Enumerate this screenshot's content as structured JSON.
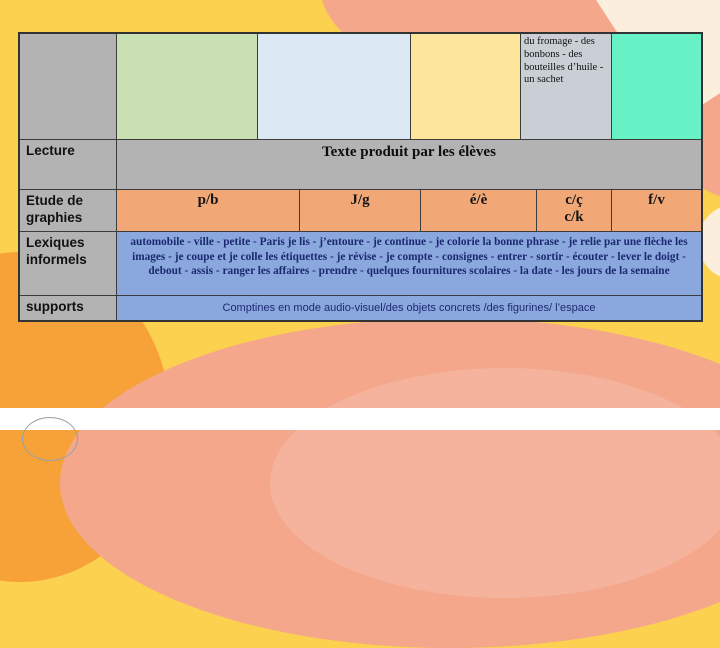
{
  "table": {
    "header_row": {
      "swatches": [
        {
          "id": "green",
          "color": "#c8e0b4",
          "text": ""
        },
        {
          "id": "blue",
          "color": "#dce9f5",
          "text": ""
        },
        {
          "id": "yellow",
          "color": "#fde69c",
          "text": ""
        },
        {
          "id": "gray",
          "color": "#c9cfd4",
          "text": "du fromage - des bonbons - des bouteilles d’huile - un sachet"
        },
        {
          "id": "teal",
          "color": "#66f2c5",
          "text": ""
        }
      ]
    },
    "lecture": {
      "label": "Lecture",
      "content": "Texte produit par les élèves"
    },
    "graphies": {
      "label": "Etude de graphies",
      "cells": [
        "p/b",
        "J/g",
        "é/è",
        "c/ç",
        "f/v"
      ],
      "cell4_line2": "c/k"
    },
    "lexiques": {
      "label": "Lexiques informels",
      "content": "automobile - ville - petite - Paris je lis - j’entoure - je continue - je colorie la bonne phrase - je relie par une flèche les images - je coupe et je colle les étiquettes - je révise - je compte - consignes - entrer - sortir - écouter - lever le doigt - debout - assis - ranger les affaires - prendre - quelques fournitures scolaires - la date - les jours de la semaine"
    },
    "supports": {
      "label": "supports",
      "content": "Comptines en mode audio-visuel/des objets concrets /des figurines/ l’espace"
    }
  },
  "background": {
    "base_yellow": "#fcd14f",
    "salmon": "#f4a78b",
    "orange": "#f6a238",
    "cream": "#fbeedd",
    "pink": "#f5b29c",
    "white_band": "#ffffff",
    "row_gray": "#b3b3b3",
    "row_orange": "#f2a876",
    "row_blue": "#8ba8de",
    "navy_text": "#1b2a70"
  }
}
